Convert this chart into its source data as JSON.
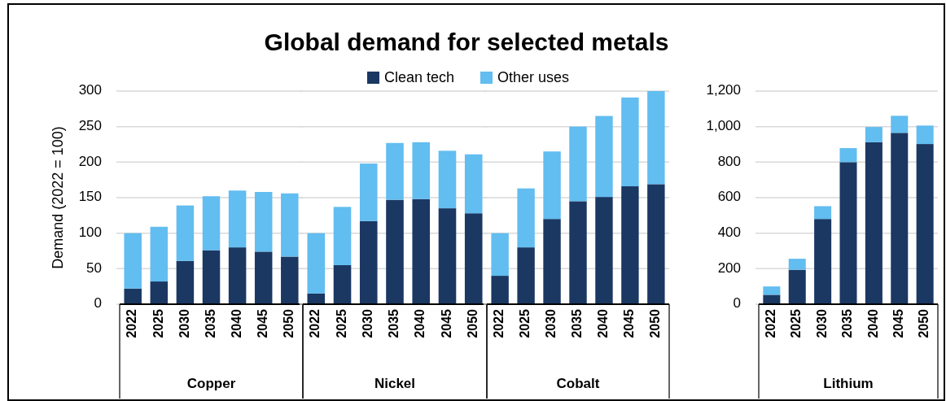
{
  "chart_data": [
    {
      "type": "bar",
      "title": "Global demand for selected metals",
      "ylabel": "Demand (2022 = 100)",
      "xlabel": "Copper",
      "categories": [
        "2022",
        "2025",
        "2030",
        "2035",
        "2040",
        "2045",
        "2050"
      ],
      "stacked": true,
      "legend": "top",
      "grid": "y",
      "ylim": [
        0,
        300
      ],
      "yticks": [
        0,
        50,
        100,
        150,
        200,
        250,
        300
      ],
      "series": [
        {
          "name": "Clean tech",
          "color": "#1b3863",
          "values": [
            22,
            32,
            61,
            76,
            80,
            74,
            67
          ]
        },
        {
          "name": "Other uses",
          "color": "#62bdf0",
          "values": [
            78,
            77,
            78,
            76,
            80,
            84,
            89
          ]
        }
      ]
    },
    {
      "type": "bar",
      "xlabel": "Nickel",
      "categories": [
        "2022",
        "2025",
        "2030",
        "2035",
        "2040",
        "2045",
        "2050"
      ],
      "stacked": true,
      "grid": "y",
      "tick_labels": "x",
      "ylim": [
        0,
        300
      ],
      "yticks": [
        0,
        50,
        100,
        150,
        200,
        250,
        300
      ],
      "series": [
        {
          "color": "#1b3863",
          "values": [
            15,
            55,
            117,
            147,
            148,
            135,
            128
          ]
        },
        {
          "color": "#62bdf0",
          "values": [
            85,
            82,
            81,
            80,
            80,
            81,
            83
          ]
        }
      ]
    },
    {
      "type": "bar",
      "xlabel": "Cobalt",
      "categories": [
        "2022",
        "2025",
        "2030",
        "2035",
        "2040",
        "2045",
        "2050"
      ],
      "stacked": true,
      "grid": "y",
      "tick_labels": "x",
      "ylim": [
        0,
        300
      ],
      "yticks": [
        0,
        50,
        100,
        150,
        200,
        250,
        300
      ],
      "series": [
        {
          "color": "#1b3863",
          "values": [
            40,
            80,
            120,
            145,
            151,
            166,
            169
          ]
        },
        {
          "color": "#62bdf0",
          "values": [
            60,
            83,
            95,
            105,
            114,
            125,
            131
          ]
        }
      ]
    },
    {
      "type": "bar",
      "xlabel": "Lithium",
      "categories": [
        "2022",
        "2025",
        "2030",
        "2035",
        "2040",
        "2045",
        "2050"
      ],
      "stacked": true,
      "grid": "y",
      "ylim": [
        0,
        1200
      ],
      "yticks": [
        0,
        200,
        400,
        600,
        800,
        {
          "value": 1000,
          "label": "1,000"
        },
        {
          "value": 1200,
          "label": "1,200"
        }
      ],
      "series": [
        {
          "color": "#1b3863",
          "values": [
            53,
            194,
            480,
            800,
            912,
            965,
            902
          ]
        },
        {
          "color": "#62bdf0",
          "values": [
            47,
            62,
            72,
            79,
            86,
            96,
            104
          ]
        }
      ]
    }
  ]
}
